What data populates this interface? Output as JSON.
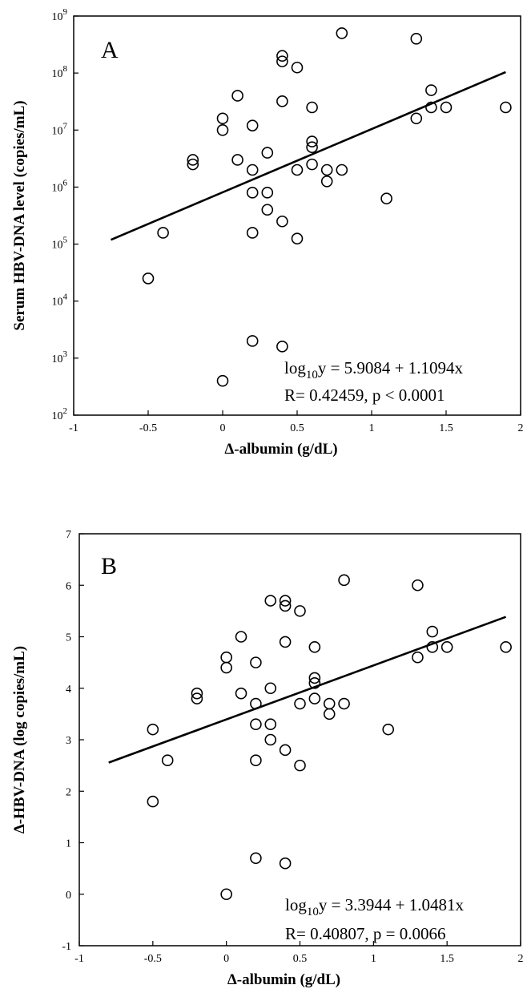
{
  "chart_data": [
    {
      "type": "scatter",
      "panel_label": "A",
      "xlabel": "Δ-albumin (g/dL)",
      "ylabel": "Serum HBV-DNA level (copies/mL)",
      "xlim": [
        -1,
        2
      ],
      "ylim": [
        100,
        1000000000
      ],
      "yscale": "log",
      "x_ticks": [
        -1,
        -0.5,
        0,
        0.5,
        1,
        1.5,
        2
      ],
      "x_tick_labels": [
        "-1",
        "-0.5",
        "0",
        "0.5",
        "1",
        "1.5",
        "2"
      ],
      "y_ticks": [
        100,
        1000,
        10000,
        100000,
        1000000,
        10000000,
        100000000,
        1000000000
      ],
      "y_tick_exponents": [
        "2",
        "3",
        "4",
        "5",
        "6",
        "7",
        "8",
        "9"
      ],
      "y_tick_base": "10",
      "grid": false,
      "annotation": {
        "log_prefix": "log",
        "log_sub": "10",
        "equation": "y = 5.9084 + 1.1094x",
        "stats": "R= 0.42459, p < 0.0001"
      },
      "fit_line": {
        "intercept": 5.9084,
        "slope": 1.1094,
        "x_range": [
          -0.75,
          1.9
        ],
        "log10_y": true
      },
      "points": [
        {
          "x": -0.5,
          "y": 25000
        },
        {
          "x": -0.4,
          "y": 158000
        },
        {
          "x": -0.2,
          "y": 3000000
        },
        {
          "x": -0.2,
          "y": 2500000
        },
        {
          "x": 0,
          "y": 16000000
        },
        {
          "x": 0,
          "y": 10000000
        },
        {
          "x": 0,
          "y": 400
        },
        {
          "x": 0.1,
          "y": 40000000
        },
        {
          "x": 0.1,
          "y": 3000000
        },
        {
          "x": 0.2,
          "y": 12000000
        },
        {
          "x": 0.2,
          "y": 2000000
        },
        {
          "x": 0.2,
          "y": 800000
        },
        {
          "x": 0.2,
          "y": 158000
        },
        {
          "x": 0.2,
          "y": 2000
        },
        {
          "x": 0.3,
          "y": 4000000
        },
        {
          "x": 0.3,
          "y": 800000
        },
        {
          "x": 0.3,
          "y": 400000
        },
        {
          "x": 0.4,
          "y": 200000000
        },
        {
          "x": 0.4,
          "y": 160000000
        },
        {
          "x": 0.4,
          "y": 32000000
        },
        {
          "x": 0.4,
          "y": 250000
        },
        {
          "x": 0.4,
          "y": 1600
        },
        {
          "x": 0.5,
          "y": 125000000
        },
        {
          "x": 0.5,
          "y": 2000000
        },
        {
          "x": 0.5,
          "y": 125000
        },
        {
          "x": 0.6,
          "y": 25000000
        },
        {
          "x": 0.6,
          "y": 6300000
        },
        {
          "x": 0.6,
          "y": 5000000
        },
        {
          "x": 0.6,
          "y": 2500000
        },
        {
          "x": 0.7,
          "y": 2000000
        },
        {
          "x": 0.7,
          "y": 1260000
        },
        {
          "x": 0.8,
          "y": 500000000
        },
        {
          "x": 0.8,
          "y": 2000000
        },
        {
          "x": 1.1,
          "y": 630000
        },
        {
          "x": 1.3,
          "y": 400000000
        },
        {
          "x": 1.3,
          "y": 16000000
        },
        {
          "x": 1.4,
          "y": 50000000
        },
        {
          "x": 1.4,
          "y": 25000000
        },
        {
          "x": 1.5,
          "y": 25000000
        },
        {
          "x": 1.9,
          "y": 25000000
        }
      ]
    },
    {
      "type": "scatter",
      "panel_label": "B",
      "xlabel": "Δ-albumin (g/dL)",
      "ylabel": "Δ-HBV-DNA (log copies/mL)",
      "xlim": [
        -1,
        2
      ],
      "ylim": [
        -1,
        7
      ],
      "yscale": "linear",
      "x_ticks": [
        -1,
        -0.5,
        0,
        0.5,
        1,
        1.5,
        2
      ],
      "x_tick_labels": [
        "-1",
        "-0.5",
        "0",
        "0.5",
        "1",
        "1.5",
        "2"
      ],
      "y_ticks": [
        -1,
        0,
        1,
        2,
        3,
        4,
        5,
        6,
        7
      ],
      "y_tick_labels": [
        "-1",
        "0",
        "1",
        "2",
        "3",
        "4",
        "5",
        "6",
        "7"
      ],
      "grid": false,
      "annotation": {
        "log_prefix": "log",
        "log_sub": "10",
        "equation": "y = 3.3944 + 1.0481x",
        "stats": "R= 0.40807, p = 0.0066"
      },
      "fit_line": {
        "intercept": 3.3944,
        "slope": 1.0481,
        "x_range": [
          -0.8,
          1.9
        ],
        "log10_y": false
      },
      "points": [
        {
          "x": -0.5,
          "y": 3.2
        },
        {
          "x": -0.5,
          "y": 1.8
        },
        {
          "x": -0.4,
          "y": 2.6
        },
        {
          "x": -0.2,
          "y": 3.9
        },
        {
          "x": -0.2,
          "y": 3.8
        },
        {
          "x": 0,
          "y": 4.6
        },
        {
          "x": 0,
          "y": 4.4
        },
        {
          "x": 0,
          "y": 0.0
        },
        {
          "x": 0.1,
          "y": 5.0
        },
        {
          "x": 0.1,
          "y": 3.9
        },
        {
          "x": 0.2,
          "y": 4.5
        },
        {
          "x": 0.2,
          "y": 3.7
        },
        {
          "x": 0.2,
          "y": 3.3
        },
        {
          "x": 0.2,
          "y": 2.6
        },
        {
          "x": 0.2,
          "y": 0.7
        },
        {
          "x": 0.3,
          "y": 5.7
        },
        {
          "x": 0.3,
          "y": 4.0
        },
        {
          "x": 0.3,
          "y": 3.3
        },
        {
          "x": 0.3,
          "y": 3.0
        },
        {
          "x": 0.4,
          "y": 5.7
        },
        {
          "x": 0.4,
          "y": 5.6
        },
        {
          "x": 0.4,
          "y": 4.9
        },
        {
          "x": 0.4,
          "y": 2.8
        },
        {
          "x": 0.4,
          "y": 0.6
        },
        {
          "x": 0.5,
          "y": 5.5
        },
        {
          "x": 0.5,
          "y": 3.7
        },
        {
          "x": 0.5,
          "y": 2.5
        },
        {
          "x": 0.6,
          "y": 4.8
        },
        {
          "x": 0.6,
          "y": 4.2
        },
        {
          "x": 0.6,
          "y": 4.1
        },
        {
          "x": 0.6,
          "y": 3.8
        },
        {
          "x": 0.7,
          "y": 3.7
        },
        {
          "x": 0.7,
          "y": 3.5
        },
        {
          "x": 0.8,
          "y": 6.1
        },
        {
          "x": 0.8,
          "y": 3.7
        },
        {
          "x": 1.1,
          "y": 3.2
        },
        {
          "x": 1.3,
          "y": 6.0
        },
        {
          "x": 1.3,
          "y": 4.6
        },
        {
          "x": 1.4,
          "y": 5.1
        },
        {
          "x": 1.4,
          "y": 4.8
        },
        {
          "x": 1.5,
          "y": 4.8
        },
        {
          "x": 1.9,
          "y": 4.8
        }
      ]
    }
  ]
}
